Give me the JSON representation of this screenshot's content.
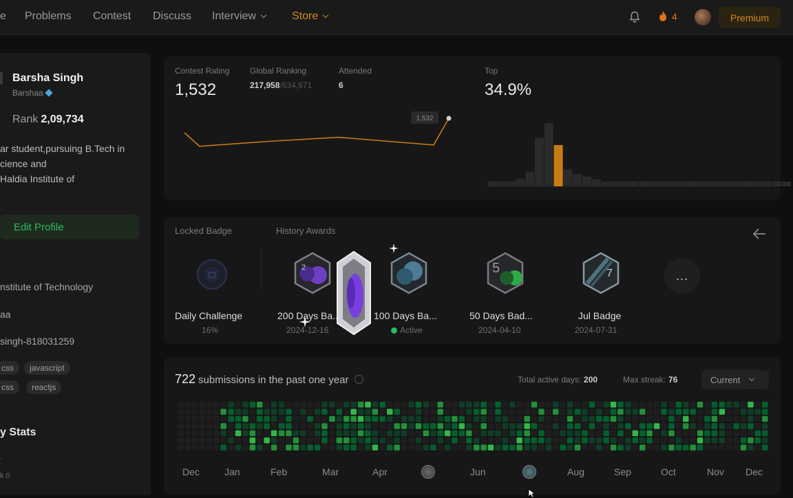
{
  "nav": {
    "items": [
      "e",
      "Problems",
      "Contest",
      "Discuss",
      "Interview",
      "Store"
    ],
    "streak": "4",
    "premium": "Premium"
  },
  "profile": {
    "name": "Barsha Singh",
    "username": "Barshaa",
    "rank_label": "Rank",
    "rank_value": "2,09,734",
    "bio": [
      "ar student,pursuing B.Tech in",
      "cience and",
      " Haldia Institute of"
    ],
    "edit_button": "Edit Profile",
    "institute": "nstitute of Technology",
    "handle": "aa",
    "link": "singh-818031259",
    "tags": [
      "css",
      "javascript",
      "css",
      "reactjs"
    ],
    "stats_heading": "y Stats"
  },
  "contest": {
    "rating_label": "Contest Rating",
    "rating_value": "1,532",
    "ranking_label": "Global Ranking",
    "ranking_value": "217,958",
    "ranking_total": "/634,671",
    "attended_label": "Attended",
    "attended_value": "6",
    "top_label": "Top",
    "top_value": "34.9%",
    "tooltip_value": "1,532"
  },
  "badges": {
    "locked_label": "Locked Badge",
    "history_label": "History Awards",
    "items": [
      {
        "name": "Daily Challenge",
        "sub": "16%"
      },
      {
        "name": "200 Days Ba...",
        "sub": "2024-12-16"
      },
      {
        "name": "100 Days Ba...",
        "sub": "Active"
      },
      {
        "name": "50 Days Bad...",
        "sub": "2024-04-10"
      },
      {
        "name": "Jul Badge",
        "sub": "2024-07-31"
      }
    ],
    "more": "..."
  },
  "submissions": {
    "count": "722",
    "title": "submissions in the past one year",
    "active_days_label": "Total active days:",
    "active_days": "200",
    "max_streak_label": "Max streak:",
    "max_streak": "76",
    "select": "Current",
    "months": [
      "Dec",
      "Jan",
      "Feb",
      "Mar",
      "Apr",
      "Jun",
      "Aug",
      "Sep",
      "Oct",
      "Nov",
      "Dec"
    ]
  },
  "colors": {
    "accent_orange": "#d4891e",
    "green": "#2cbb5d",
    "line_orange": "#c77c15"
  },
  "chart_data": [
    {
      "type": "line",
      "title": "Contest Rating",
      "x": [
        1,
        2,
        3,
        4,
        5,
        6
      ],
      "values": [
        1500,
        1470,
        1481,
        1490,
        1473,
        1532
      ]
    },
    {
      "type": "bar",
      "title": "Top",
      "values": [
        2,
        2,
        2,
        3,
        6,
        20,
        26,
        17,
        7,
        5,
        4,
        3,
        2,
        2,
        2,
        2,
        2,
        2,
        2,
        2,
        2,
        2,
        2,
        2,
        2,
        2,
        2,
        2,
        2,
        2,
        2,
        2
      ],
      "highlight_index": 7
    }
  ]
}
